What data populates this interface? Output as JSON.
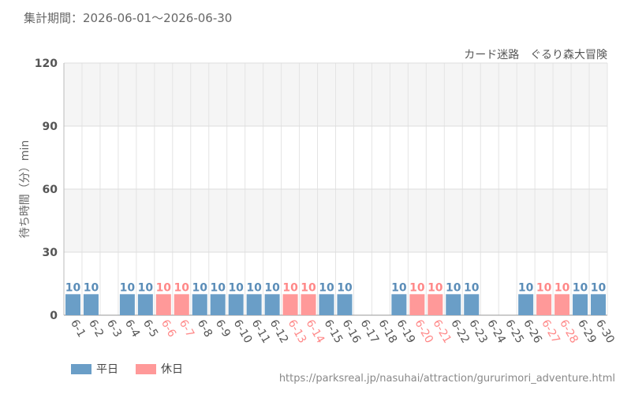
{
  "header": {
    "period_label": "集計期間：2026-06-01～2026-06-30"
  },
  "colors": {
    "weekday": "#6a9ec7",
    "holiday": "#ff9999",
    "weekday_text": "#5b8db8",
    "holiday_text": "#ff8888"
  },
  "legend": {
    "weekday_label": "平日",
    "holiday_label": "休日"
  },
  "source_url": "https://parksreal.jp/nasuhai/attraction/gururimori_adventure.html",
  "chart_data": {
    "type": "bar",
    "title": "カード迷路　ぐるり森大冒険",
    "ylabel": "待ち時間（分）min",
    "xlabel": "",
    "ylim": [
      0,
      120
    ],
    "yticks": [
      0,
      30,
      60,
      90,
      120
    ],
    "categories": [
      "6-1",
      "6-2",
      "6-3",
      "6-4",
      "6-5",
      "6-6",
      "6-7",
      "6-8",
      "6-9",
      "6-10",
      "6-11",
      "6-12",
      "6-13",
      "6-14",
      "6-15",
      "6-16",
      "6-17",
      "6-18",
      "6-19",
      "6-20",
      "6-21",
      "6-22",
      "6-23",
      "6-24",
      "6-25",
      "6-26",
      "6-27",
      "6-28",
      "6-29",
      "6-30"
    ],
    "values": [
      10,
      10,
      null,
      10,
      10,
      10,
      10,
      10,
      10,
      10,
      10,
      10,
      10,
      10,
      10,
      10,
      null,
      null,
      10,
      10,
      10,
      10,
      10,
      null,
      null,
      10,
      10,
      10,
      10,
      10
    ],
    "day_type": [
      "weekday",
      "weekday",
      "weekday",
      "weekday",
      "weekday",
      "holiday",
      "holiday",
      "weekday",
      "weekday",
      "weekday",
      "weekday",
      "weekday",
      "holiday",
      "holiday",
      "weekday",
      "weekday",
      "weekday",
      "weekday",
      "weekday",
      "holiday",
      "holiday",
      "weekday",
      "weekday",
      "weekday",
      "weekday",
      "weekday",
      "holiday",
      "holiday",
      "weekday",
      "weekday"
    ],
    "legend_position": "bottom-left",
    "grid": true
  }
}
